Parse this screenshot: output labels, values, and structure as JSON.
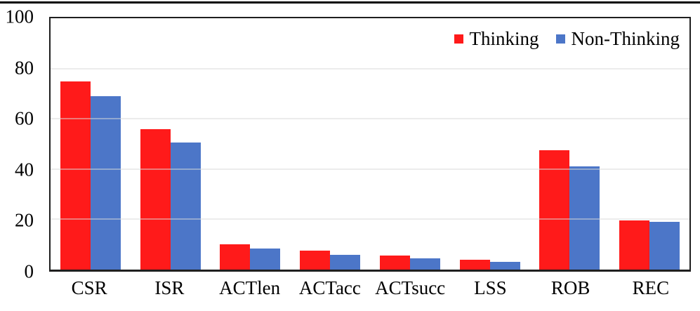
{
  "figure": {
    "top_rule_color": "#000000",
    "background_color": "#ffffff"
  },
  "chart_data": {
    "type": "bar",
    "title": "",
    "xlabel": "",
    "ylabel": "",
    "categories": [
      "CSR",
      "ISR",
      "ACTlen",
      "ACTacc",
      "ACTsucc",
      "LSS",
      "ROB",
      "REC"
    ],
    "series": [
      {
        "name": "Thinking",
        "color": "#ff1a1a",
        "values": [
          75,
          56,
          10,
          7.5,
          5.5,
          4,
          47.5,
          19.5
        ]
      },
      {
        "name": "Non-Thinking",
        "color": "#4c76c8",
        "values": [
          69,
          50.5,
          8.5,
          6,
          4.5,
          3,
          41,
          19
        ]
      }
    ],
    "ylim": [
      0,
      100
    ],
    "yticks": [
      0,
      20,
      40,
      60,
      80,
      100
    ],
    "grid": true,
    "legend_position": "top-right",
    "axis_color": "#1f1f1f",
    "gridline_color": "#d9d9d9",
    "text_color": "#000000"
  }
}
